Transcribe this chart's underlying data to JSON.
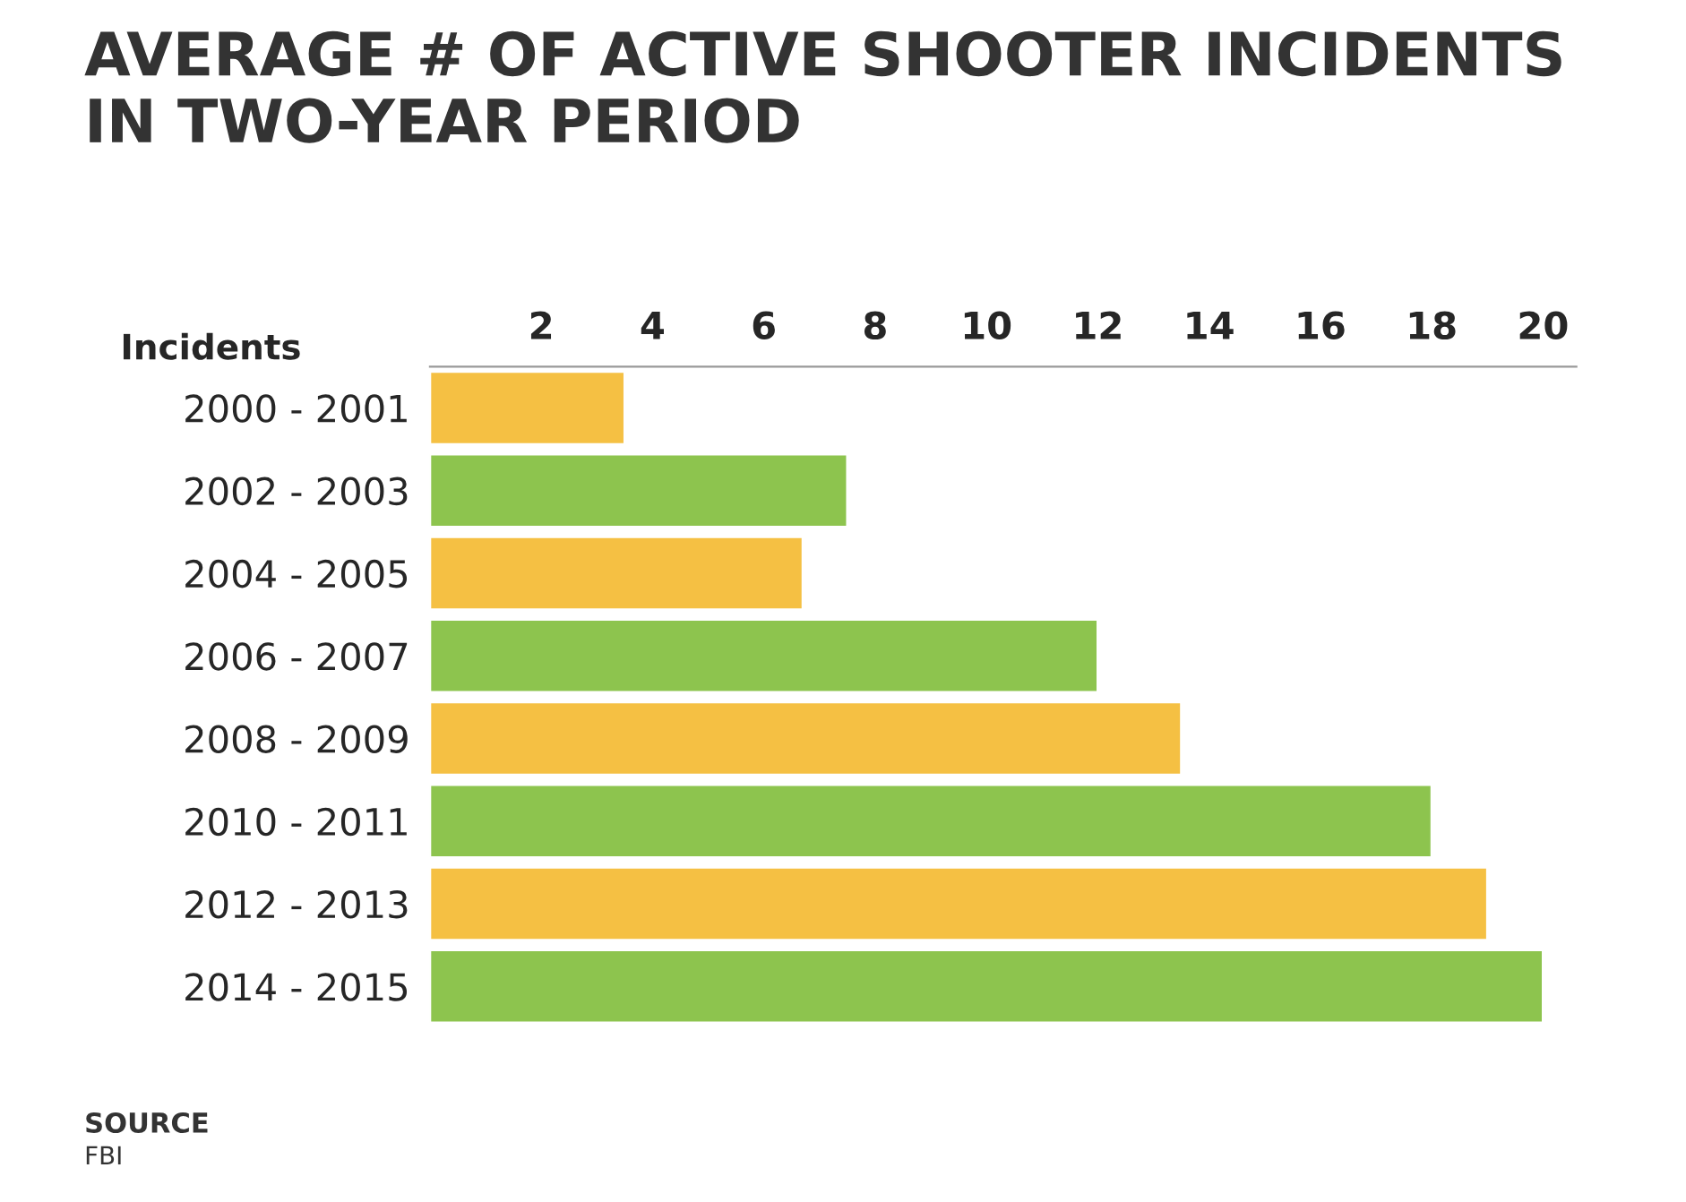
{
  "chart_data": {
    "type": "bar",
    "orientation": "horizontal",
    "title": "AVERAGE # OF ACTIVE SHOOTER INCIDENTS\nIN TWO-YEAR PERIOD",
    "ylabel": "Incidents",
    "categories": [
      "2000 - 2001",
      "2002 - 2003",
      "2004 - 2005",
      "2006 - 2007",
      "2008 - 2009",
      "2010 - 2011",
      "2012 - 2013",
      "2014 - 2015"
    ],
    "values": [
      3.5,
      7.5,
      6.7,
      12,
      13.5,
      18,
      19,
      20
    ],
    "colors": [
      "#f5c043",
      "#8dc44e",
      "#f5c043",
      "#8dc44e",
      "#f5c043",
      "#8dc44e",
      "#f5c043",
      "#8dc44e"
    ],
    "xlim": [
      0,
      20.6
    ],
    "xticks": [
      2,
      4,
      6,
      8,
      10,
      12,
      14,
      16,
      18,
      20
    ],
    "grid": false,
    "legend": false,
    "annotations": [
      "SOURCE",
      "FBI"
    ]
  }
}
